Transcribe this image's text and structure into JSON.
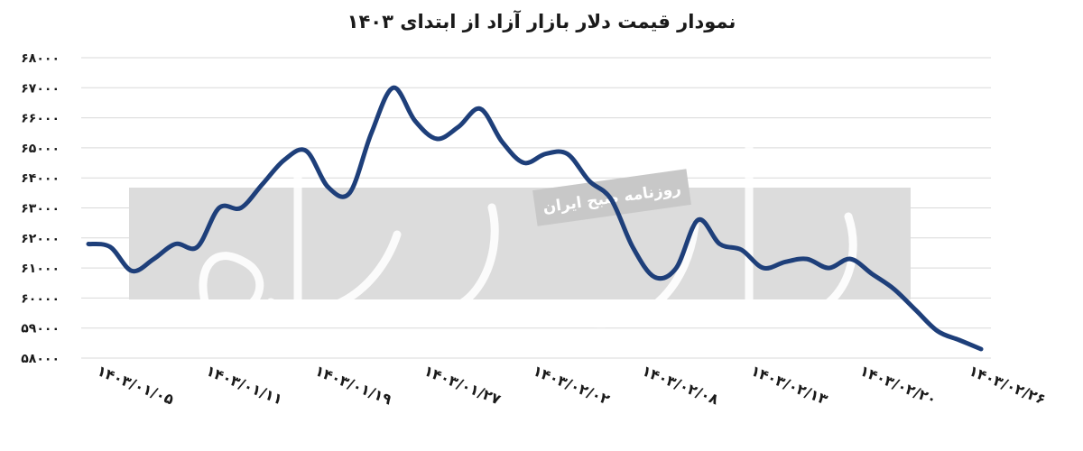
{
  "chart_data": {
    "type": "line",
    "title": "نمودار قیمت دلار بازار آزاد از ابتدای ۱۴۰۳",
    "xlabel": "",
    "ylabel": "",
    "ylim": [
      58000,
      68000
    ],
    "yticks": [
      58000,
      59000,
      60000,
      61000,
      62000,
      63000,
      64000,
      65000,
      66000,
      67000,
      68000
    ],
    "ytick_labels": [
      "۵۸۰۰۰",
      "۵۹۰۰۰",
      "۶۰۰۰۰",
      "۶۱۰۰۰",
      "۶۲۰۰۰",
      "۶۳۰۰۰",
      "۶۴۰۰۰",
      "۶۵۰۰۰",
      "۶۶۰۰۰",
      "۶۷۰۰۰",
      "۶۸۰۰۰"
    ],
    "xtick_labels": [
      "۱۴۰۳/۰۱/۰۵",
      "۱۴۰۳/۰۱/۱۱",
      "۱۴۰۳/۰۱/۱۹",
      "۱۴۰۳/۰۱/۲۷",
      "۱۴۰۳/۰۲/۰۲",
      "۱۴۰۳/۰۲/۰۸",
      "۱۴۰۳/۰۲/۱۳",
      "۱۴۰۳/۰۲/۲۰",
      "۱۴۰۳/۰۲/۲۶"
    ],
    "grid": true,
    "line_color": "#1e3f7a",
    "series": [
      {
        "values": [
          61800,
          61700,
          60900,
          61300,
          61800,
          61700,
          63000,
          63000,
          63800,
          64600,
          64900,
          63700,
          63500,
          65500,
          67000,
          65900,
          65300,
          65700,
          66300,
          65200,
          64500,
          64800,
          64800,
          63900,
          63300,
          61700,
          60700,
          61000,
          62600,
          61800,
          61600,
          61000,
          61200,
          61300,
          61000,
          61300,
          60800,
          60300,
          59600,
          58900,
          58600,
          58300
        ]
      }
    ]
  },
  "watermark": {
    "label": "روزنامه صبح ایران",
    "box_color": "#dcdcdc"
  }
}
